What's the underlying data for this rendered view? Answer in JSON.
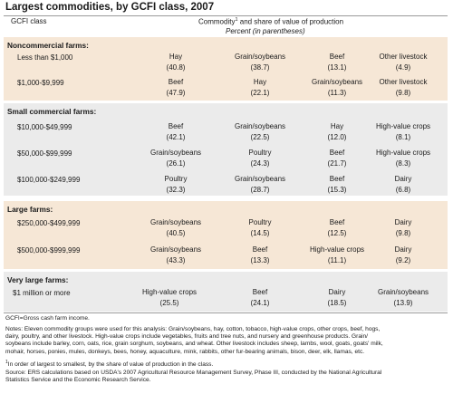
{
  "title": "Largest commodities, by GCFI class, 2007",
  "header": {
    "class_label": "GCFI class",
    "commodity_label": "Commodity",
    "commodity_sup": "1",
    "commodity_suffix": " and share of value of production",
    "percent_label": "Percent (in parentheses)"
  },
  "sections": [
    {
      "title": "Noncommercial farms:",
      "rows": [
        {
          "label": "Less than $1,000",
          "cells": [
            {
              "name": "Hay",
              "value": "(40.8)"
            },
            {
              "name": "Grain/soybeans",
              "value": "(38.7)"
            },
            {
              "name": "Beef",
              "value": "(13.1)"
            },
            {
              "name": "Other livestock",
              "value": "(4.9)"
            }
          ]
        },
        {
          "label": "$1,000-$9,999",
          "cells": [
            {
              "name": "Beef",
              "value": "(47.9)"
            },
            {
              "name": "Hay",
              "value": "(22.1)"
            },
            {
              "name": "Grain/soybeans",
              "value": "(11.3)"
            },
            {
              "name": "Other livestock",
              "value": "(9.8)"
            }
          ]
        }
      ]
    },
    {
      "title": "Small commercial farms:",
      "rows": [
        {
          "label": "$10,000-$49,999",
          "cells": [
            {
              "name": "Beef",
              "value": "(42.1)"
            },
            {
              "name": "Grain/soybeans",
              "value": "(22.5)"
            },
            {
              "name": "Hay",
              "value": "(12.0)"
            },
            {
              "name": "High-value crops",
              "value": "(8.1)"
            }
          ]
        },
        {
          "label": "$50,000-$99,999",
          "cells": [
            {
              "name": "Grain/soybeans",
              "value": "(26.1)"
            },
            {
              "name": "Poultry",
              "value": "(24.3)"
            },
            {
              "name": "Beef",
              "value": "(21.7)"
            },
            {
              "name": "High-value crops",
              "value": "(8.3)"
            }
          ]
        },
        {
          "label": "$100,000-$249,999",
          "cells": [
            {
              "name": "Poultry",
              "value": "(32.3)"
            },
            {
              "name": "Grain/soybeans",
              "value": "(28.7)"
            },
            {
              "name": "Beef",
              "value": "(15.3)"
            },
            {
              "name": "Dairy",
              "value": "(6.8)"
            }
          ]
        }
      ]
    },
    {
      "title": "Large farms:",
      "rows": [
        {
          "label": "$250,000-$499,999",
          "cells": [
            {
              "name": "Grain/soybeans",
              "value": "(40.5)"
            },
            {
              "name": "Poultry",
              "value": "(14.5)"
            },
            {
              "name": "Beef",
              "value": "(12.5)"
            },
            {
              "name": "Dairy",
              "value": "(9.8)"
            }
          ]
        },
        {
          "label": "$500,000-$999,999",
          "cells": [
            {
              "name": "Grain/soybeans",
              "value": "(43.3)"
            },
            {
              "name": "Beef",
              "value": "(13.3)"
            },
            {
              "name": "High-value crops",
              "value": "(11.1)"
            },
            {
              "name": "Dairy",
              "value": "(9.2)"
            }
          ]
        }
      ]
    },
    {
      "title": "Very large farms:",
      "rows": [
        {
          "label": "$1 million or more",
          "cells": [
            {
              "name": "High-value crops",
              "value": "(25.5)"
            },
            {
              "name": "Beef",
              "value": "(24.1)"
            },
            {
              "name": "Dairy",
              "value": "(18.5)"
            },
            {
              "name": "Grain/soybeans",
              "value": "(13.9)"
            }
          ]
        }
      ]
    }
  ],
  "notes": {
    "gcfi": "GCFI=Gross cash farm income.",
    "notes_lines": [
      "Notes: Eleven commodity groups were used for this analysis: Grain/soybeans, hay, cotton, tobacco, high-value crops, other crops, beef, hogs,",
      "dairy, poultry, and other livestock. High-value crops include vegetables, fruits and tree nuts, and nursery and greenhouse products. Grain/",
      "soybeans include barley, corn, oats, rice, grain sorghum, soybeans, and wheat. Other livestock includes sheep, lambs, wool, goats, goats' milk,",
      "mohair, horses, ponies, mules, donkeys, bees, honey, aquaculture, mink, rabbits, other fur-bearing animals, bison, deer, elk, llamas, etc."
    ],
    "footnote_sup": "1",
    "footnote": "In order of largest to smallest, by the share of value of production in the class.",
    "source_lines": [
      "Source: ERS calculations based on USDA's 2007 Agricultural Resource Management Survey, Phase III, conducted by the National Agricultural",
      "Statistics Service and the Economic Research Service."
    ]
  }
}
